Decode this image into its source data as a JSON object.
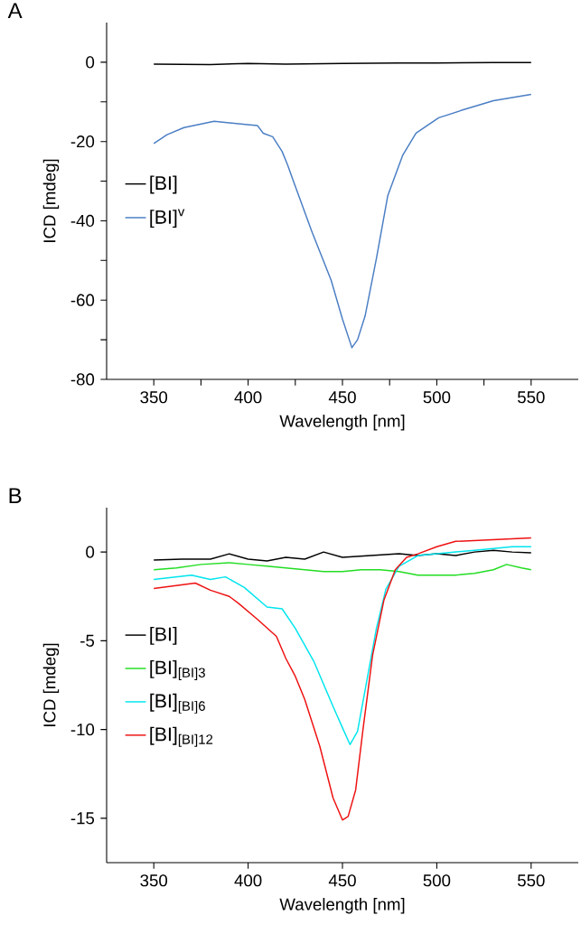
{
  "chart_data": [
    {
      "type": "line",
      "title": "A",
      "xlabel": "Wavelength [nm]",
      "ylabel": "ICD [mdeg]",
      "xlim": [
        325,
        575
      ],
      "ylim": [
        -80,
        10
      ],
      "xticks": [
        350,
        {
          "value": 375,
          "label": null
        },
        400,
        {
          "value": 425,
          "label": null
        },
        450,
        {
          "value": 475,
          "label": null
        },
        500,
        {
          "value": 525,
          "label": null
        },
        550
      ],
      "yticks": [
        -80,
        {
          "value": -70,
          "label": null
        },
        -60,
        {
          "value": -50,
          "label": null
        },
        -40,
        {
          "value": -30,
          "label": null
        },
        -20,
        {
          "value": -10,
          "label": null
        },
        0
      ],
      "legend": "left",
      "grid": false,
      "series": [
        {
          "name": "[BI]",
          "color": "#000000",
          "x": [
            350,
            380,
            400,
            420,
            450,
            480,
            500,
            530,
            550
          ],
          "values": [
            -0.5,
            -0.6,
            -0.3,
            -0.5,
            -0.3,
            -0.2,
            -0.2,
            -0.1,
            -0.1
          ]
        },
        {
          "name": "[BI]$^{v}$",
          "color": "#4a7ec4",
          "x": [
            350,
            357,
            366,
            382,
            401,
            405,
            408,
            413,
            418,
            421,
            424,
            434,
            444,
            450,
            455,
            458,
            462,
            468,
            474,
            482,
            489,
            501,
            514,
            530,
            550
          ],
          "values": [
            -20.5,
            -18.3,
            -16.5,
            -14.9,
            -15.8,
            -16,
            -17.9,
            -18.8,
            -22.5,
            -26,
            -30,
            -43,
            -55,
            -64.8,
            -72,
            -70,
            -64,
            -49.5,
            -33.7,
            -23.4,
            -17.9,
            -14,
            -12,
            -9.7,
            -8.1
          ]
        }
      ]
    },
    {
      "type": "line",
      "title": "B",
      "xlabel": "Wavelength [nm]",
      "ylabel": "ICD [mdeg]",
      "xlim": [
        325,
        575
      ],
      "ylim": [
        -17.5,
        2.5
      ],
      "xticks": [
        350,
        400,
        450,
        500,
        550
      ],
      "yticks": [
        -15,
        -10,
        -5,
        0
      ],
      "legend": "left",
      "grid": false,
      "series": [
        {
          "name": "[BI]",
          "color": "#000000",
          "x": [
            350,
            365,
            380,
            390,
            400,
            410,
            420,
            430,
            440,
            450,
            465,
            480,
            490,
            500,
            510,
            520,
            530,
            540,
            550
          ],
          "values": [
            -0.45,
            -0.4,
            -0.4,
            -0.1,
            -0.4,
            -0.5,
            -0.3,
            -0.4,
            -0.0,
            -0.3,
            -0.2,
            -0.1,
            -0.2,
            -0.1,
            -0.2,
            0.0,
            0.1,
            0.0,
            -0.05
          ]
        },
        {
          "name": "[BI]$_{[BI]3}$",
          "color": "#22dd22",
          "x": [
            350,
            362,
            375,
            390,
            400,
            410,
            420,
            430,
            440,
            450,
            460,
            470,
            480,
            490,
            500,
            510,
            520,
            530,
            537,
            545,
            550
          ],
          "values": [
            -1.0,
            -0.9,
            -0.7,
            -0.6,
            -0.7,
            -0.8,
            -0.9,
            -1.0,
            -1.1,
            -1.1,
            -1.0,
            -1.0,
            -1.1,
            -1.3,
            -1.3,
            -1.3,
            -1.2,
            -1.0,
            -0.7,
            -0.9,
            -1.0
          ]
        },
        {
          "name": "[BI]$_{[BI]6}$",
          "color": "#00e5ee",
          "x": [
            350,
            370,
            380,
            388,
            398,
            410,
            418,
            425,
            435,
            445,
            450,
            454,
            458,
            463,
            468,
            473,
            480,
            490,
            500,
            520,
            540,
            550
          ],
          "values": [
            -1.55,
            -1.3,
            -1.55,
            -1.4,
            -2.0,
            -3.1,
            -3.2,
            -4.3,
            -6.2,
            -8.7,
            -9.9,
            -10.85,
            -10.1,
            -7.2,
            -4.3,
            -2.1,
            -0.8,
            -0.2,
            -0.1,
            0.1,
            0.3,
            0.3
          ]
        },
        {
          "name": "[BI]$_{[BI]12}$",
          "color": "#ee1111",
          "x": [
            350,
            372,
            380,
            390,
            395,
            405,
            415,
            420,
            425,
            430,
            438,
            445,
            450,
            453,
            457,
            461,
            466,
            472,
            478,
            484,
            490,
            500,
            510,
            530,
            550
          ],
          "values": [
            -2.05,
            -1.75,
            -2.15,
            -2.5,
            -2.9,
            -3.8,
            -4.75,
            -6.0,
            -7.0,
            -8.3,
            -10.95,
            -13.85,
            -15.1,
            -14.9,
            -13.4,
            -9.9,
            -5.8,
            -2.7,
            -1.0,
            -0.3,
            -0.1,
            0.3,
            0.6,
            0.7,
            0.8
          ]
        }
      ]
    }
  ]
}
